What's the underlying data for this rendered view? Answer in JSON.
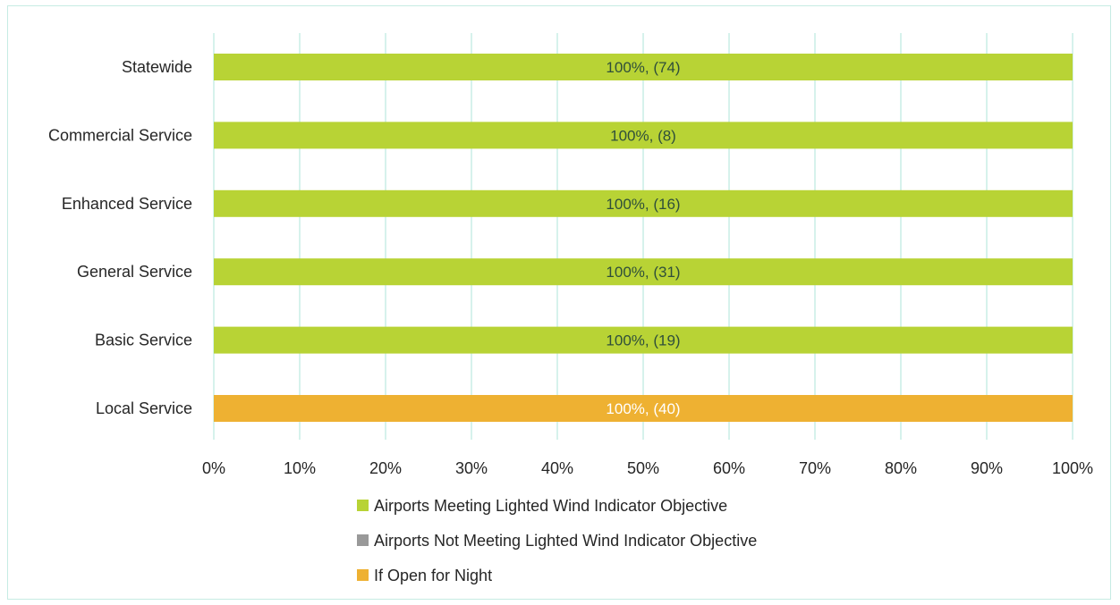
{
  "chart_data": {
    "type": "bar",
    "orientation": "horizontal",
    "stacked": true,
    "categories": [
      "Statewide",
      "Commercial Service",
      "Enhanced Service",
      "General Service",
      "Basic Service",
      "Local Service"
    ],
    "xlim": [
      0,
      100
    ],
    "xticks": [
      "0%",
      "10%",
      "20%",
      "30%",
      "40%",
      "50%",
      "60%",
      "70%",
      "80%",
      "90%",
      "100%"
    ],
    "grid": true,
    "legend_position": "bottom",
    "series": [
      {
        "name": "Airports Meeting Lighted Wind Indicator Objective",
        "color": "#b8d335",
        "values": [
          100,
          100,
          100,
          100,
          100,
          null
        ],
        "labels": [
          "100%, (74)",
          "100%, (8)",
          "100%, (16)",
          "100%, (31)",
          "100%, (19)",
          ""
        ]
      },
      {
        "name": "Airports Not Meeting Lighted Wind Indicator Objective",
        "color": "#999999",
        "values": [
          0,
          0,
          0,
          0,
          0,
          null
        ],
        "labels": [
          "",
          "",
          "",
          "",
          "",
          ""
        ]
      },
      {
        "name": "If Open for Night",
        "color": "#eeb132",
        "values": [
          null,
          null,
          null,
          null,
          null,
          100
        ],
        "labels": [
          "",
          "",
          "",
          "",
          "",
          "100%, (40)"
        ]
      }
    ]
  }
}
